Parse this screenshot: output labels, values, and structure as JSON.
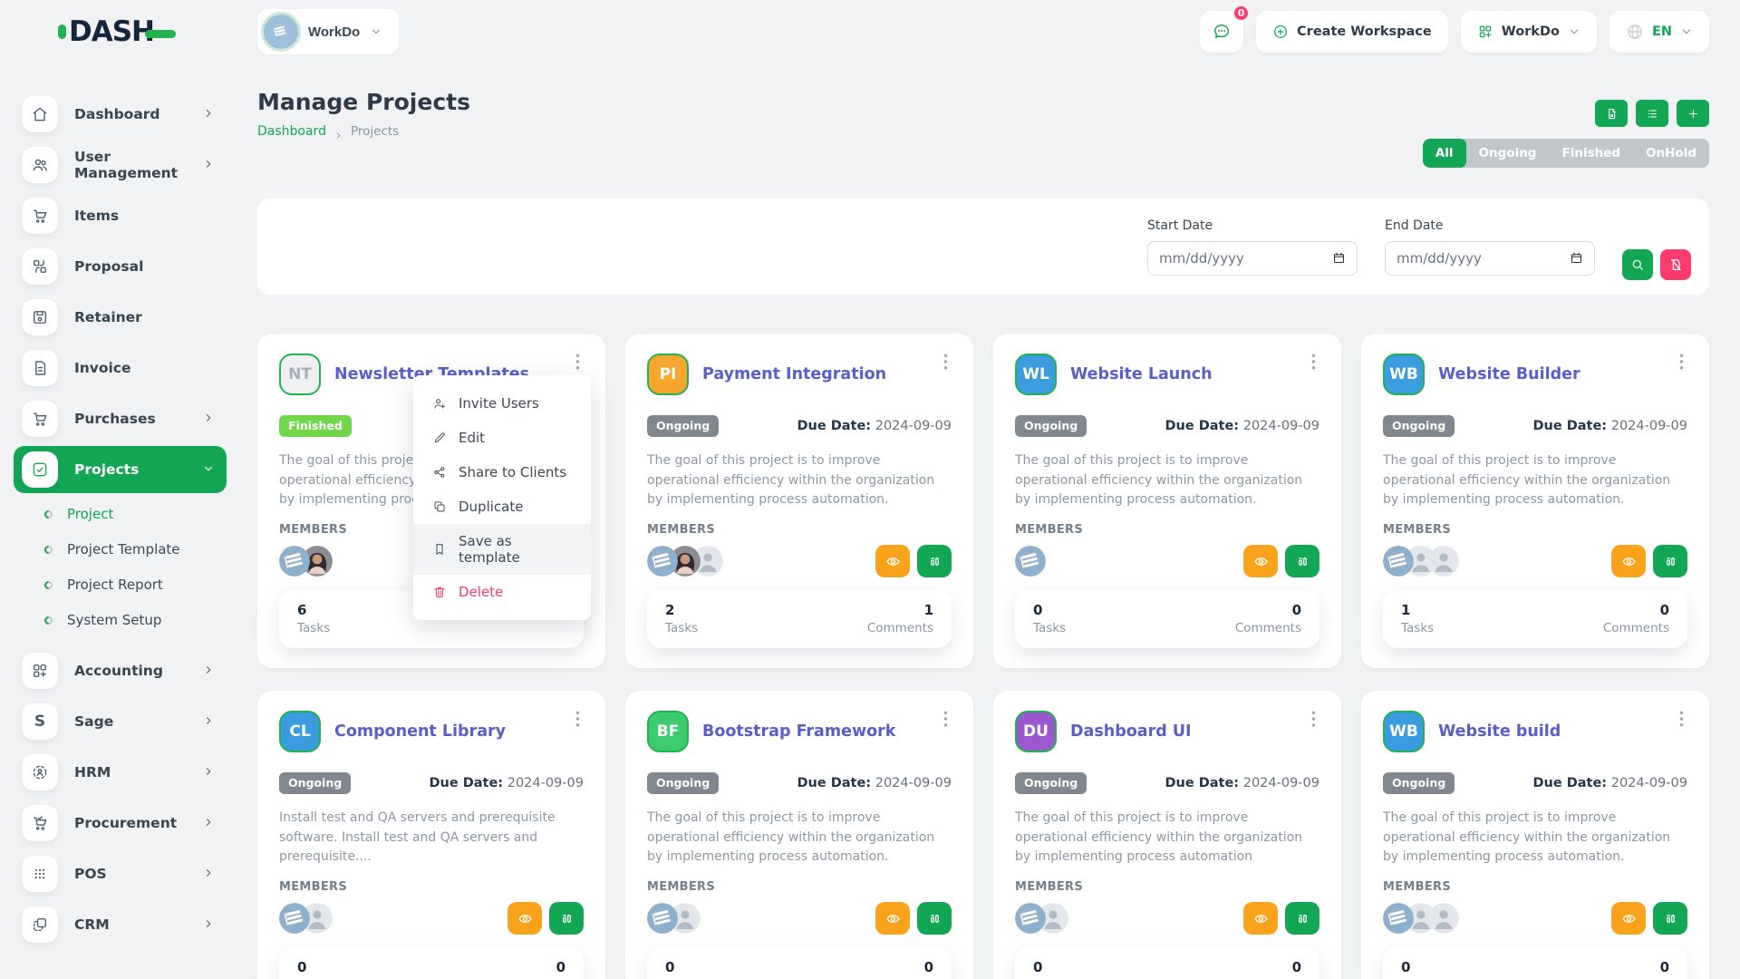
{
  "brand": {
    "name": "DASH"
  },
  "topbar": {
    "workspace": "WorkDo",
    "messages_badge": "0",
    "create_workspace": "Create Workspace",
    "app_menu": "WorkDo",
    "language": "EN"
  },
  "sidebar": {
    "items": [
      {
        "label": "Dashboard",
        "icon": "home-icon",
        "chevron": true
      },
      {
        "label": "User Management",
        "icon": "users-icon",
        "chevron": true
      },
      {
        "label": "Items",
        "icon": "cart-icon",
        "chevron": false
      },
      {
        "label": "Proposal",
        "icon": "proposal-icon",
        "chevron": false
      },
      {
        "label": "Retainer",
        "icon": "retainer-icon",
        "chevron": false
      },
      {
        "label": "Invoice",
        "icon": "invoice-icon",
        "chevron": false
      },
      {
        "label": "Purchases",
        "icon": "purchases-icon",
        "chevron": true
      },
      {
        "label": "Projects",
        "icon": "projects-icon",
        "chevron": true,
        "active": true,
        "expanded": true,
        "children": [
          {
            "label": "Project",
            "active": true
          },
          {
            "label": "Project Template"
          },
          {
            "label": "Project Report"
          },
          {
            "label": "System Setup"
          }
        ]
      },
      {
        "label": "Accounting",
        "icon": "accounting-icon",
        "chevron": true
      },
      {
        "label": "Sage",
        "icon": "sage-icon",
        "chevron": true
      },
      {
        "label": "HRM",
        "icon": "hrm-icon",
        "chevron": true
      },
      {
        "label": "Procurement",
        "icon": "procurement-icon",
        "chevron": true
      },
      {
        "label": "POS",
        "icon": "pos-icon",
        "chevron": true
      },
      {
        "label": "CRM",
        "icon": "crm-icon",
        "chevron": true
      }
    ]
  },
  "page": {
    "title": "Manage Projects",
    "breadcrumb": [
      "Dashboard",
      "Projects"
    ]
  },
  "toolbar": {
    "buttons": [
      {
        "name": "export-template-button",
        "icon": "file-export-icon"
      },
      {
        "name": "list-view-button",
        "icon": "list-icon"
      },
      {
        "name": "create-project-button",
        "icon": "plus-icon"
      }
    ]
  },
  "tabs": {
    "items": [
      "All",
      "Ongoing",
      "Finished",
      "OnHold"
    ],
    "active": "All"
  },
  "filters": {
    "start_label": "Start Date",
    "end_label": "End Date",
    "date_placeholder": "mm/dd/yyyy"
  },
  "labels": {
    "members": "MEMBERS",
    "tasks": "Tasks",
    "comments": "Comments",
    "due": "Due Date:"
  },
  "context_menu": {
    "items": [
      {
        "label": "Invite Users",
        "icon": "user-plus-icon"
      },
      {
        "label": "Edit",
        "icon": "pencil-icon"
      },
      {
        "label": "Share to Clients",
        "icon": "share-icon"
      },
      {
        "label": "Duplicate",
        "icon": "duplicate-icon"
      },
      {
        "label": "Save as template",
        "icon": "bookmark-icon",
        "highlighted": true
      },
      {
        "label": "Delete",
        "icon": "trash-icon",
        "danger": true
      }
    ]
  },
  "projects": [
    {
      "initials": "NT",
      "avatar_bg": "#eef0f2",
      "avatar_fg": "#a7b1bb",
      "title": "Newsletter Templates",
      "status": "Finished",
      "status_bg": "#72d64b",
      "due": null,
      "description": "The goal of this project is to improve operational efficiency within the organization by implementing process automation.",
      "members": [
        "workdo-logo",
        "woman-photo"
      ],
      "tasks": "6",
      "comments": null,
      "actions": false,
      "menu_open": true
    },
    {
      "initials": "PI",
      "avatar_bg": "#f5a62c",
      "avatar_fg": "#ffffff",
      "title": "Payment Integration",
      "status": "Ongoing",
      "status_bg": "#80878f",
      "due": "2024-09-09",
      "description": "The goal of this project is to improve operational efficiency within the organization by implementing process automation.",
      "members": [
        "workdo-logo",
        "woman-photo",
        "user-placeholder"
      ],
      "tasks": "2",
      "comments": "1"
    },
    {
      "initials": "WL",
      "avatar_bg": "#3b9de0",
      "avatar_fg": "#ffffff",
      "title": "Website Launch",
      "status": "Ongoing",
      "status_bg": "#80878f",
      "due": "2024-09-09",
      "description": "The goal of this project is to improve operational efficiency within the organization by implementing process automation.",
      "members": [
        "workdo-logo"
      ],
      "tasks": "0",
      "comments": "0"
    },
    {
      "initials": "WB",
      "avatar_bg": "#3b9de0",
      "avatar_fg": "#ffffff",
      "title": "Website Builder",
      "status": "Ongoing",
      "status_bg": "#80878f",
      "due": "2024-09-09",
      "description": "The goal of this project is to improve operational efficiency within the organization by implementing process automation.",
      "members": [
        "workdo-logo",
        "user-placeholder",
        "user-placeholder"
      ],
      "tasks": "1",
      "comments": "0"
    },
    {
      "initials": "CL",
      "avatar_bg": "#3b9de0",
      "avatar_fg": "#ffffff",
      "title": "Component Library",
      "status": "Ongoing",
      "status_bg": "#80878f",
      "due": "2024-09-09",
      "description": "Install test and QA servers and prerequisite software. Install test and QA servers and prerequisite....",
      "members": [
        "workdo-logo",
        "user-placeholder"
      ],
      "tasks": "0",
      "comments": "0"
    },
    {
      "initials": "BF",
      "avatar_bg": "#3ecb6e",
      "avatar_fg": "#ffffff",
      "title": "Bootstrap Framework",
      "status": "Ongoing",
      "status_bg": "#80878f",
      "due": "2024-09-09",
      "description": "The goal of this project is to improve operational efficiency within the organization by implementing process automation.",
      "members": [
        "workdo-logo",
        "user-placeholder"
      ],
      "tasks": "0",
      "comments": "0"
    },
    {
      "initials": "DU",
      "avatar_bg": "#9b59d0",
      "avatar_fg": "#ffffff",
      "title": "Dashboard UI",
      "status": "Ongoing",
      "status_bg": "#80878f",
      "due": "2024-09-09",
      "description": "The goal of this project is to improve operational efficiency within the organization by implementing process automation",
      "members": [
        "workdo-logo",
        "user-placeholder"
      ],
      "tasks": "0",
      "comments": "0"
    },
    {
      "initials": "WB",
      "avatar_bg": "#3b9de0",
      "avatar_fg": "#ffffff",
      "title": "Website build",
      "status": "Ongoing",
      "status_bg": "#80878f",
      "due": "2024-09-09",
      "description": "The goal of this project is to improve operational efficiency within the organization by implementing process automation.",
      "members": [
        "workdo-logo",
        "user-placeholder",
        "user-placeholder"
      ],
      "tasks": "0",
      "comments": "0"
    }
  ],
  "colors": {
    "primary": "#12a655",
    "orange": "#f9a21b",
    "pink": "#fd3c6d",
    "badge_finished": "#72d64b",
    "badge_ongoing": "#80878f"
  }
}
